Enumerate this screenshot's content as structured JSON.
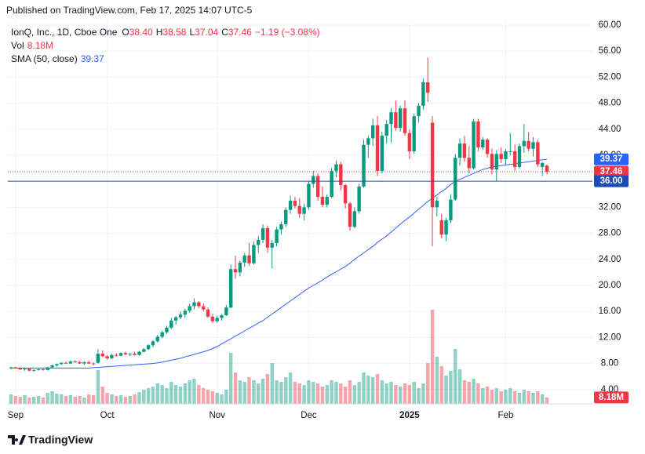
{
  "header": {
    "title": "Published on TradingView.com, Feb 17, 2025 14:07 UTC-5"
  },
  "footer": {
    "logo": "TradingView"
  },
  "chart_data": {
    "type": "candlestick",
    "symbol": "IonQ, Inc., 1D, Cboe One",
    "ohlc_legend": [
      {
        "key": "O",
        "value": "38.40"
      },
      {
        "key": "H",
        "value": "38.58"
      },
      {
        "key": "L",
        "value": "37.04"
      },
      {
        "key": "C",
        "value": "37.46"
      }
    ],
    "change": "−1.19 (−3.08%)",
    "volume_legend": {
      "name": "Vol",
      "value": "8.18M"
    },
    "up_color": "#089981",
    "down_color": "#f23645",
    "ohlc": [
      [
        7.3,
        7.5,
        7.1,
        7.4
      ],
      [
        7.4,
        7.5,
        7.2,
        7.3
      ],
      [
        7.3,
        7.4,
        7.0,
        7.1
      ],
      [
        7.1,
        7.3,
        6.9,
        7.2
      ],
      [
        7.2,
        7.3,
        6.8,
        6.9
      ],
      [
        6.9,
        7.1,
        6.7,
        7.0
      ],
      [
        7.0,
        7.2,
        6.9,
        7.1
      ],
      [
        7.1,
        7.3,
        6.9,
        7.0
      ],
      [
        7.0,
        7.5,
        6.9,
        7.4
      ],
      [
        7.4,
        7.8,
        7.3,
        7.7
      ],
      [
        7.7,
        8.0,
        7.5,
        7.9
      ],
      [
        7.9,
        8.2,
        7.8,
        8.1
      ],
      [
        8.1,
        8.3,
        7.9,
        8.0
      ],
      [
        8.0,
        8.4,
        7.9,
        8.3
      ],
      [
        8.3,
        8.5,
        8.1,
        8.2
      ],
      [
        8.2,
        8.4,
        7.9,
        8.0
      ],
      [
        8.0,
        8.3,
        7.8,
        8.2
      ],
      [
        8.2,
        8.4,
        7.9,
        8.0
      ],
      [
        8.0,
        8.2,
        7.7,
        7.9
      ],
      [
        8.1,
        10.2,
        8.0,
        9.5
      ],
      [
        9.5,
        10.0,
        9.0,
        9.1
      ],
      [
        9.1,
        9.3,
        8.6,
        8.8
      ],
      [
        8.8,
        9.5,
        8.7,
        9.3
      ],
      [
        9.3,
        9.6,
        9.0,
        9.2
      ],
      [
        9.2,
        9.7,
        9.1,
        9.6
      ],
      [
        9.6,
        9.8,
        9.3,
        9.4
      ],
      [
        9.4,
        9.6,
        9.1,
        9.5
      ],
      [
        9.5,
        9.8,
        9.2,
        9.3
      ],
      [
        9.3,
        9.9,
        9.2,
        9.8
      ],
      [
        9.8,
        10.4,
        9.7,
        10.2
      ],
      [
        10.2,
        11.0,
        10.1,
        10.8
      ],
      [
        10.8,
        11.6,
        10.5,
        11.4
      ],
      [
        11.4,
        12.4,
        11.2,
        12.1
      ],
      [
        12.1,
        13.0,
        11.9,
        12.8
      ],
      [
        12.8,
        13.8,
        12.5,
        13.5
      ],
      [
        13.5,
        15.0,
        13.3,
        14.6
      ],
      [
        14.6,
        15.3,
        14.0,
        15.1
      ],
      [
        15.1,
        16.0,
        14.8,
        15.5
      ],
      [
        15.5,
        16.4,
        15.0,
        16.1
      ],
      [
        16.1,
        17.2,
        15.8,
        16.8
      ],
      [
        16.8,
        18.0,
        16.3,
        17.4
      ],
      [
        17.4,
        17.6,
        16.5,
        16.8
      ],
      [
        16.8,
        17.2,
        16.0,
        16.3
      ],
      [
        16.3,
        16.6,
        15.0,
        15.2
      ],
      [
        15.2,
        15.6,
        14.2,
        14.5
      ],
      [
        14.5,
        15.3,
        14.3,
        15.0
      ],
      [
        15.0,
        15.6,
        14.6,
        15.4
      ],
      [
        15.4,
        17.0,
        15.3,
        16.6
      ],
      [
        16.6,
        23.2,
        16.5,
        22.5
      ],
      [
        22.5,
        24.6,
        21.0,
        22.0
      ],
      [
        22.0,
        23.8,
        21.4,
        23.5
      ],
      [
        23.5,
        25.0,
        22.8,
        24.6
      ],
      [
        24.6,
        26.5,
        23.0,
        23.4
      ],
      [
        23.4,
        26.8,
        23.2,
        26.2
      ],
      [
        26.2,
        27.6,
        25.0,
        27.0
      ],
      [
        27.0,
        29.4,
        26.5,
        28.8
      ],
      [
        28.8,
        29.2,
        25.0,
        25.8
      ],
      [
        25.8,
        27.0,
        22.6,
        26.5
      ],
      [
        26.5,
        29.0,
        26.0,
        28.6
      ],
      [
        28.6,
        29.8,
        27.8,
        29.4
      ],
      [
        29.4,
        32.0,
        29.0,
        31.6
      ],
      [
        31.6,
        33.8,
        31.0,
        33.0
      ],
      [
        33.0,
        33.6,
        31.8,
        32.2
      ],
      [
        32.2,
        33.4,
        30.4,
        31.0
      ],
      [
        31.0,
        32.6,
        30.0,
        32.0
      ],
      [
        32.0,
        36.0,
        31.6,
        35.6
      ],
      [
        35.6,
        37.6,
        35.0,
        36.8
      ],
      [
        36.8,
        37.2,
        33.0,
        33.6
      ],
      [
        33.6,
        35.2,
        32.0,
        32.4
      ],
      [
        32.4,
        34.0,
        32.0,
        33.6
      ],
      [
        33.6,
        38.0,
        33.4,
        37.6
      ],
      [
        37.6,
        39.2,
        36.6,
        38.6
      ],
      [
        38.6,
        39.0,
        34.6,
        35.4
      ],
      [
        35.4,
        35.6,
        31.8,
        32.6
      ],
      [
        32.6,
        32.8,
        28.4,
        29.0
      ],
      [
        29.0,
        32.0,
        28.8,
        31.4
      ],
      [
        31.4,
        35.6,
        31.0,
        35.2
      ],
      [
        35.2,
        42.4,
        35.0,
        41.6
      ],
      [
        41.6,
        43.0,
        39.6,
        42.6
      ],
      [
        42.6,
        45.6,
        41.4,
        44.6
      ],
      [
        44.6,
        46.0,
        36.8,
        37.6
      ],
      [
        37.6,
        43.6,
        37.2,
        43.0
      ],
      [
        43.0,
        45.4,
        41.8,
        44.8
      ],
      [
        44.8,
        47.2,
        42.0,
        46.6
      ],
      [
        46.6,
        48.4,
        43.8,
        44.2
      ],
      [
        44.2,
        47.6,
        43.6,
        47.2
      ],
      [
        47.2,
        48.4,
        43.0,
        43.4
      ],
      [
        43.4,
        44.0,
        39.4,
        40.6
      ],
      [
        40.6,
        46.4,
        40.2,
        46.0
      ],
      [
        46.0,
        48.0,
        45.0,
        47.6
      ],
      [
        47.6,
        51.8,
        47.0,
        51.2
      ],
      [
        51.2,
        55.0,
        48.2,
        49.6
      ],
      [
        45.0,
        46.0,
        26.0,
        32.0
      ],
      [
        32.0,
        33.6,
        30.6,
        33.0
      ],
      [
        30.0,
        31.0,
        27.2,
        27.8
      ],
      [
        27.8,
        30.4,
        26.8,
        30.0
      ],
      [
        30.0,
        34.0,
        29.6,
        33.2
      ],
      [
        33.2,
        40.2,
        33.0,
        39.6
      ],
      [
        39.6,
        42.6,
        38.4,
        41.8
      ],
      [
        41.8,
        43.0,
        39.0,
        39.6
      ],
      [
        39.6,
        41.4,
        37.2,
        38.0
      ],
      [
        38.0,
        45.6,
        37.8,
        45.2
      ],
      [
        45.2,
        45.6,
        40.6,
        41.2
      ],
      [
        41.2,
        42.8,
        40.8,
        42.4
      ],
      [
        42.4,
        42.6,
        39.6,
        40.2
      ],
      [
        40.2,
        41.0,
        37.0,
        37.8
      ],
      [
        37.8,
        40.8,
        36.0,
        40.2
      ],
      [
        40.2,
        41.2,
        38.8,
        39.4
      ],
      [
        39.4,
        41.0,
        38.6,
        40.6
      ],
      [
        40.6,
        43.4,
        40.0,
        40.6
      ],
      [
        40.6,
        41.6,
        37.6,
        38.2
      ],
      [
        38.2,
        41.8,
        38.0,
        41.4
      ],
      [
        41.4,
        44.8,
        40.4,
        42.2
      ],
      [
        42.2,
        43.6,
        40.6,
        41.0
      ],
      [
        41.0,
        42.8,
        39.8,
        42.0
      ],
      [
        42.0,
        42.4,
        38.2,
        38.6
      ],
      [
        38.2,
        39.0,
        36.8,
        38.8
      ],
      [
        38.4,
        38.58,
        37.04,
        37.46
      ]
    ],
    "volume": [
      12,
      10,
      9,
      11,
      8,
      9,
      10,
      8,
      14,
      16,
      13,
      12,
      10,
      11,
      9,
      10,
      8,
      12,
      11,
      43,
      22,
      14,
      12,
      10,
      11,
      9,
      10,
      12,
      15,
      18,
      20,
      22,
      26,
      24,
      20,
      28,
      24,
      22,
      26,
      30,
      32,
      24,
      20,
      18,
      16,
      14,
      12,
      18,
      65,
      40,
      30,
      28,
      34,
      30,
      26,
      32,
      38,
      52,
      30,
      28,
      34,
      40,
      28,
      26,
      24,
      30,
      28,
      26,
      22,
      24,
      30,
      28,
      26,
      22,
      30,
      24,
      28,
      40,
      36,
      34,
      38,
      30,
      26,
      28,
      24,
      22,
      26,
      24,
      28,
      20,
      26,
      52,
      120,
      60,
      48,
      36,
      42,
      70,
      44,
      30,
      28,
      32,
      26,
      20,
      22,
      18,
      20,
      16,
      18,
      20,
      16,
      14,
      18,
      16,
      14,
      16,
      12,
      8.18
    ],
    "volume_badge": {
      "value": 8.18,
      "label": "8.18M"
    },
    "sma": {
      "name": "SMA (50, close)",
      "last_label": "39.37",
      "color": "#2962ff",
      "values": [
        7.3,
        7.3,
        7.3,
        7.3,
        7.3,
        7.3,
        7.3,
        7.3,
        7.3,
        7.3,
        7.3,
        7.3,
        7.3,
        7.3,
        7.3,
        7.3,
        7.3,
        7.3,
        7.35,
        7.4,
        7.45,
        7.5,
        7.55,
        7.6,
        7.65,
        7.7,
        7.75,
        7.8,
        7.85,
        7.9,
        7.95,
        8.0,
        8.1,
        8.2,
        8.35,
        8.5,
        8.65,
        8.8,
        9.0,
        9.2,
        9.4,
        9.6,
        9.8,
        10.0,
        10.3,
        10.6,
        11.0,
        11.4,
        11.8,
        12.2,
        12.6,
        13.0,
        13.4,
        13.8,
        14.2,
        14.6,
        15.1,
        15.6,
        16.1,
        16.6,
        17.1,
        17.6,
        18.1,
        18.6,
        19.1,
        19.6,
        20.0,
        20.4,
        20.8,
        21.3,
        21.7,
        22.1,
        22.5,
        22.9,
        23.4,
        24.0,
        24.5,
        25.0,
        25.5,
        26.0,
        26.6,
        27.1,
        27.6,
        28.2,
        28.8,
        29.4,
        30.0,
        30.5,
        31.1,
        31.7,
        32.3,
        32.9,
        33.4,
        33.9,
        34.4,
        34.9,
        35.5,
        36.0,
        36.3,
        36.6,
        36.9,
        37.2,
        37.5,
        37.8,
        38.0,
        38.2,
        38.3,
        38.4,
        38.5,
        38.6,
        38.7,
        38.8,
        38.9,
        39.0,
        39.1,
        39.2,
        39.3,
        39.37
      ]
    },
    "close_line": {
      "value": 37.46,
      "label": "37.46"
    },
    "price_line": {
      "value": 36,
      "label": "36.00"
    },
    "ylim": [
      1.8,
      60.6
    ],
    "yticks": [
      {
        "value": 4,
        "label": "4.00"
      },
      {
        "value": 8,
        "label": "8.00"
      },
      {
        "value": 12,
        "label": "12.00"
      },
      {
        "value": 16,
        "label": "16.00"
      },
      {
        "value": 20,
        "label": "20.00"
      },
      {
        "value": 24,
        "label": "24.00"
      },
      {
        "value": 28,
        "label": "28.00"
      },
      {
        "value": 32,
        "label": "32.00"
      },
      {
        "value": 36,
        "label": "36.00"
      },
      {
        "value": 40,
        "label": "40.00"
      },
      {
        "value": 44,
        "label": "44.00"
      },
      {
        "value": 48,
        "label": "48.00"
      },
      {
        "value": 52,
        "label": "52.00"
      },
      {
        "value": 56,
        "label": "56.00"
      },
      {
        "value": 60,
        "label": "60.00"
      }
    ],
    "xticks": [
      {
        "value": 1,
        "label": "Sep"
      },
      {
        "value": 21,
        "label": "Oct"
      },
      {
        "value": 45,
        "label": "Nov"
      },
      {
        "value": 65,
        "label": "Dec"
      },
      {
        "value": 87,
        "label": "2025"
      },
      {
        "value": 108,
        "label": "Feb"
      }
    ],
    "grid": true
  }
}
